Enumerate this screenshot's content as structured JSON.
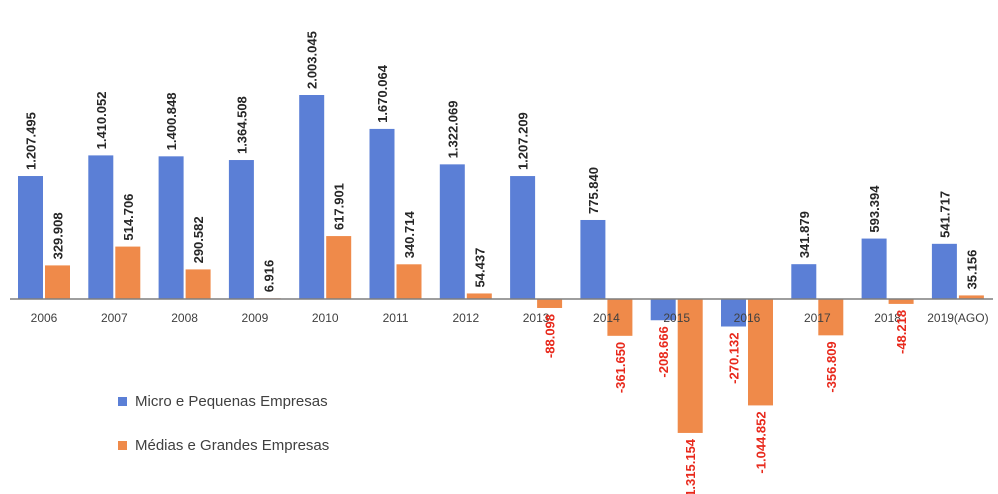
{
  "chart_data": {
    "type": "bar",
    "categories": [
      "2006",
      "2007",
      "2008",
      "2009",
      "2010",
      "2011",
      "2012",
      "2013",
      "2014",
      "2015",
      "2016",
      "2017",
      "2018",
      "2019(AGO)"
    ],
    "series": [
      {
        "name": "Micro e Pequenas Empresas",
        "color": "#5b7fd6",
        "values": [
          1207495,
          1410052,
          1400848,
          1364508,
          2003045,
          1670064,
          1322069,
          1207209,
          775840,
          -208666,
          -270132,
          341879,
          593394,
          541717
        ],
        "labels": [
          "1.207.495",
          "1.410.052",
          "1.400.848",
          "1.364.508",
          "2.003.045",
          "1.670.064",
          "1.322.069",
          "1.207.209",
          "775.840",
          "-208.666",
          "-270.132",
          "341.879",
          "593.394",
          "541.717"
        ]
      },
      {
        "name": "Médias e Grandes Empresas",
        "color": "#ef8a4a",
        "values": [
          329908,
          514706,
          290582,
          6916,
          617901,
          340714,
          54437,
          -88098,
          -361650,
          -1315154,
          -1044852,
          -356809,
          -48218,
          35156
        ],
        "labels": [
          "329.908",
          "514.706",
          "290.582",
          "6.916",
          "617.901",
          "340.714",
          "54.437",
          "-88.098",
          "-361.650",
          "-1.315.154",
          "-1.044.852",
          "-356.809",
          "-48.218",
          "35.156"
        ]
      }
    ],
    "label_colors": {
      "positive": "#262626",
      "negative": "#e8291c"
    },
    "grid": false,
    "legend_position": "bottom-left"
  }
}
